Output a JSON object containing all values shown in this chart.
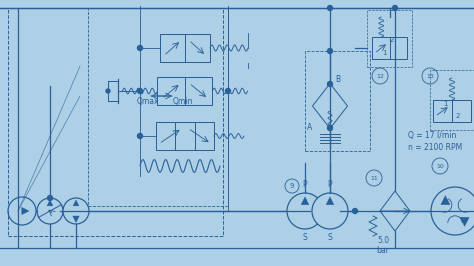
{
  "bg_color": "#aed0e6",
  "line_color": "#2a6099",
  "figsize": [
    4.74,
    2.66
  ],
  "dpi": 100,
  "xlim": [
    0,
    474
  ],
  "ylim": [
    0,
    266
  ]
}
